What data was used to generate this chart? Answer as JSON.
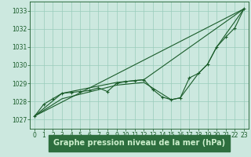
{
  "title": "Graphe pression niveau de la mer (hPa)",
  "background_color": "#cce8df",
  "plot_bg_color": "#cce8df",
  "grid_color": "#99ccbb",
  "line_color": "#1a5c2a",
  "title_bg_color": "#2d6e3e",
  "title_text_color": "#cceecc",
  "xlim": [
    -0.5,
    23.5
  ],
  "ylim": [
    1026.5,
    1033.5
  ],
  "yticks": [
    1027,
    1028,
    1029,
    1030,
    1031,
    1032,
    1033
  ],
  "xticks": [
    0,
    1,
    2,
    3,
    4,
    5,
    6,
    7,
    8,
    9,
    10,
    11,
    12,
    13,
    14,
    15,
    16,
    17,
    18,
    19,
    20,
    21,
    22,
    23
  ],
  "main_series": [
    [
      0,
      1027.2
    ],
    [
      1,
      1027.85
    ],
    [
      2,
      1028.15
    ],
    [
      3,
      1028.45
    ],
    [
      4,
      1028.5
    ],
    [
      5,
      1028.55
    ],
    [
      6,
      1028.6
    ],
    [
      7,
      1028.75
    ],
    [
      8,
      1028.55
    ],
    [
      9,
      1029.0
    ],
    [
      10,
      1029.1
    ],
    [
      11,
      1029.15
    ],
    [
      12,
      1029.2
    ],
    [
      13,
      1028.65
    ],
    [
      14,
      1028.25
    ],
    [
      15,
      1028.1
    ],
    [
      16,
      1028.2
    ],
    [
      17,
      1029.3
    ],
    [
      18,
      1029.55
    ],
    [
      19,
      1030.05
    ],
    [
      20,
      1031.0
    ],
    [
      21,
      1031.55
    ],
    [
      22,
      1032.05
    ],
    [
      23,
      1033.1
    ]
  ],
  "trend_line": [
    [
      0,
      1027.2
    ],
    [
      23,
      1033.1
    ]
  ],
  "upper_envelope": [
    [
      0,
      1027.2
    ],
    [
      3,
      1028.45
    ],
    [
      7,
      1028.85
    ],
    [
      9,
      1029.05
    ],
    [
      11,
      1029.15
    ],
    [
      12,
      1029.2
    ],
    [
      23,
      1033.1
    ]
  ],
  "lower_envelope": [
    [
      0,
      1027.2
    ],
    [
      3,
      1028.15
    ],
    [
      9,
      1028.9
    ],
    [
      12,
      1029.05
    ],
    [
      15,
      1028.1
    ],
    [
      16,
      1028.2
    ],
    [
      18,
      1029.55
    ],
    [
      19,
      1030.05
    ],
    [
      20,
      1031.0
    ],
    [
      23,
      1033.1
    ]
  ],
  "tick_fontsize": 5.5,
  "title_fontsize": 7.0
}
